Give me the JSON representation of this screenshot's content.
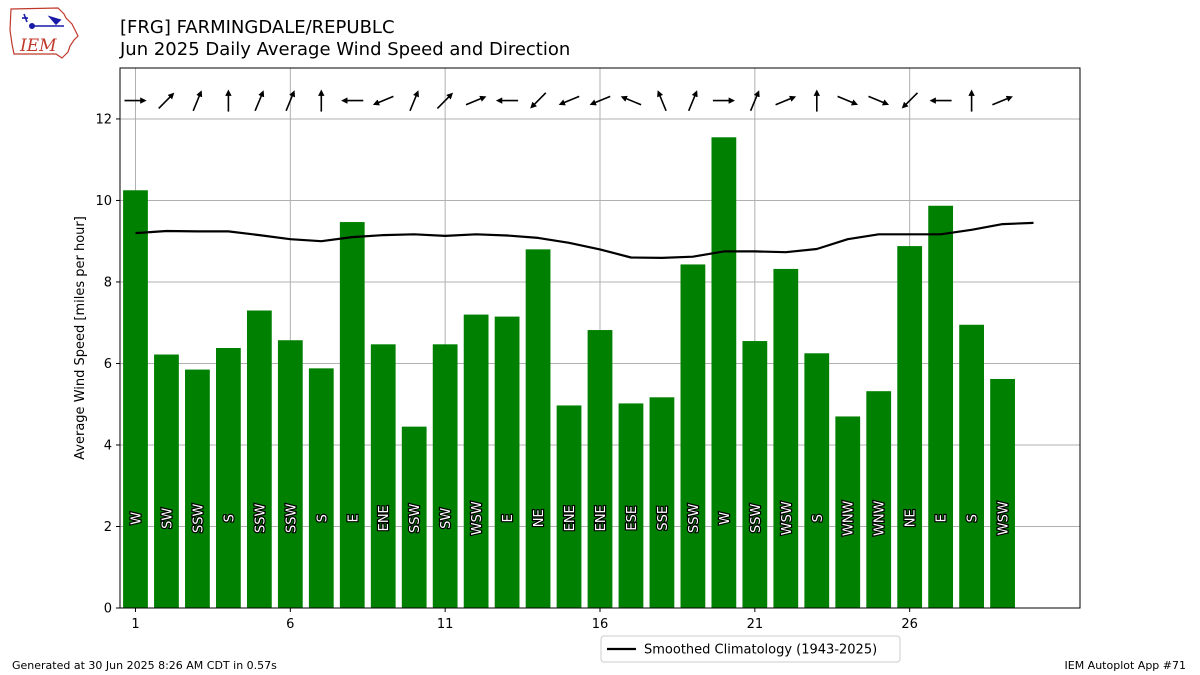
{
  "header": {
    "title_line1": "[FRG] FARMINGDALE/REPUBLC",
    "title_line2": "Jun 2025 Daily Average Wind Speed and Direction"
  },
  "logo": {
    "text": "IEM"
  },
  "footer": {
    "left": "Generated at 30 Jun 2025 8:26 AM CDT in 0.57s",
    "right": "IEM Autoplot App #71"
  },
  "colors": {
    "bar": "#008000",
    "line": "#000000",
    "grid": "#b0b0b0"
  },
  "chart_data": {
    "type": "bar",
    "ylabel": "Average Wind Speed [miles per hour]",
    "xlabel": "",
    "xlim": [
      0.5,
      31.5
    ],
    "ylim": [
      0,
      13.25
    ],
    "grid": true,
    "x_ticks": [
      1,
      6,
      11,
      16,
      21,
      26
    ],
    "y_ticks": [
      0,
      2,
      4,
      6,
      8,
      10,
      12
    ],
    "legend_position": "bottom-center",
    "days": [
      1,
      2,
      3,
      4,
      5,
      6,
      7,
      8,
      9,
      10,
      11,
      12,
      13,
      14,
      15,
      16,
      17,
      18,
      19,
      20,
      21,
      22,
      23,
      24,
      25,
      26,
      27,
      28,
      29
    ],
    "values": [
      10.25,
      6.22,
      5.85,
      6.38,
      7.3,
      6.57,
      5.88,
      9.47,
      6.47,
      4.45,
      6.47,
      7.2,
      7.15,
      8.8,
      4.97,
      6.82,
      5.02,
      5.17,
      8.43,
      11.55,
      6.55,
      8.32,
      6.25,
      4.7,
      5.32,
      8.88,
      9.87,
      6.95,
      5.62
    ],
    "directions": [
      "W",
      "SW",
      "SSW",
      "S",
      "SSW",
      "SSW",
      "S",
      "E",
      "ENE",
      "SSW",
      "SW",
      "WSW",
      "E",
      "NE",
      "ENE",
      "ENE",
      "ESE",
      "SSE",
      "SSW",
      "W",
      "SSW",
      "WSW",
      "S",
      "WNW",
      "WNW",
      "NE",
      "E",
      "S",
      "WSW"
    ],
    "series": [
      {
        "name": "Smoothed Climatology (1943-2025)",
        "type": "line",
        "x": [
          1,
          2,
          3,
          4,
          5,
          6,
          7,
          8,
          9,
          10,
          11,
          12,
          13,
          14,
          15,
          16,
          17,
          18,
          19,
          20,
          21,
          22,
          23,
          24,
          25,
          26,
          27,
          28,
          29,
          30
        ],
        "values": [
          9.2,
          9.25,
          9.24,
          9.24,
          9.15,
          9.05,
          9.0,
          9.1,
          9.15,
          9.17,
          9.13,
          9.17,
          9.14,
          9.08,
          8.96,
          8.8,
          8.6,
          8.59,
          8.62,
          8.75,
          8.75,
          8.73,
          8.81,
          9.05,
          9.17,
          9.17,
          9.17,
          9.28,
          9.42,
          9.45
        ]
      }
    ]
  }
}
